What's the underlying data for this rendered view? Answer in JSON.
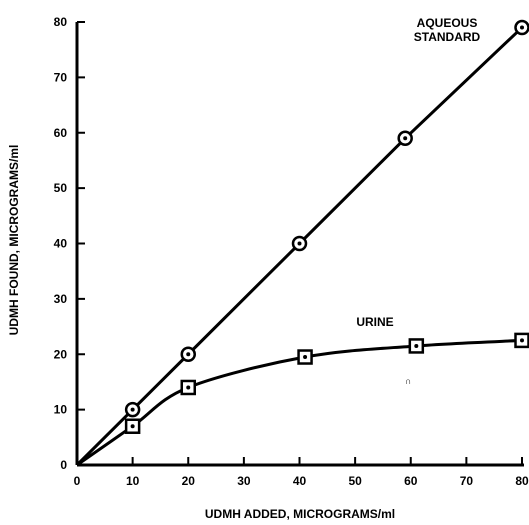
{
  "chart_data": {
    "type": "line",
    "title": "",
    "xlabel": "UDMH ADDED, MICROGRAMS/ml",
    "ylabel": "UDMH FOUND, MICROGRAMS/ml",
    "xlim": [
      0,
      80
    ],
    "ylim": [
      0,
      80
    ],
    "xticks": [
      0,
      10,
      20,
      30,
      40,
      50,
      60,
      70,
      80
    ],
    "yticks": [
      0,
      10,
      20,
      30,
      40,
      50,
      60,
      70,
      80
    ],
    "grid": false,
    "series": [
      {
        "name": "AQUEOUS STANDARD",
        "marker": "circle-dot",
        "x": [
          10,
          20,
          40,
          59,
          80
        ],
        "y": [
          10,
          20,
          40,
          59,
          79
        ]
      },
      {
        "name": "URINE",
        "marker": "square-dot",
        "x": [
          10,
          20,
          41,
          61,
          80
        ],
        "y": [
          7,
          14,
          19.5,
          21.5,
          22.5
        ]
      }
    ],
    "annotations": [
      {
        "text_lines": [
          "AQUEOUS",
          "STANDARD"
        ],
        "series": "AQUEOUS STANDARD"
      },
      {
        "text_lines": [
          "URINE"
        ],
        "series": "URINE"
      }
    ]
  }
}
